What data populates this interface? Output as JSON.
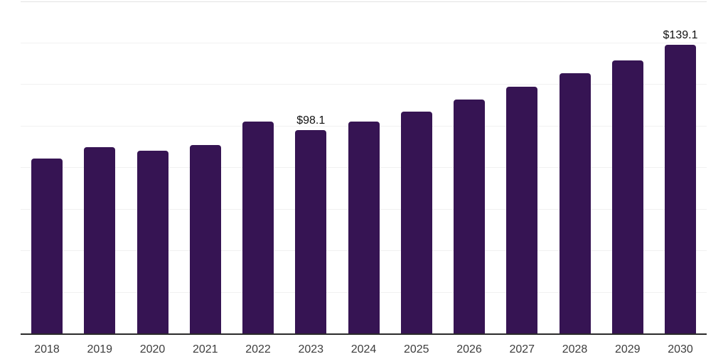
{
  "colors": {
    "bar": "#361453",
    "gridline": "#f1f1f1",
    "top_border": "#e3e3e3",
    "axis_line": "#2a2a2a",
    "year_label": "#3d3d3d",
    "value_label": "#111111",
    "background": "#ffffff"
  },
  "chart_data": {
    "type": "bar",
    "title": "",
    "xlabel": "",
    "ylabel": "",
    "categories": [
      "2018",
      "2019",
      "2020",
      "2021",
      "2022",
      "2023",
      "2024",
      "2025",
      "2026",
      "2027",
      "2028",
      "2029",
      "2030"
    ],
    "values": [
      84.5,
      90.0,
      88.2,
      91.1,
      102.3,
      98.1,
      102.4,
      107.0,
      112.9,
      119.0,
      125.5,
      131.5,
      139.1
    ],
    "data_labels": [
      "",
      "",
      "",
      "",
      "",
      "$98.1",
      "",
      "",
      "",
      "",
      "",
      "",
      "$139.1"
    ],
    "ylim": [
      0,
      160
    ],
    "gridline_step": 20,
    "grid": "horizontal",
    "legend": "none",
    "y_axis_tick_labels": "none"
  }
}
